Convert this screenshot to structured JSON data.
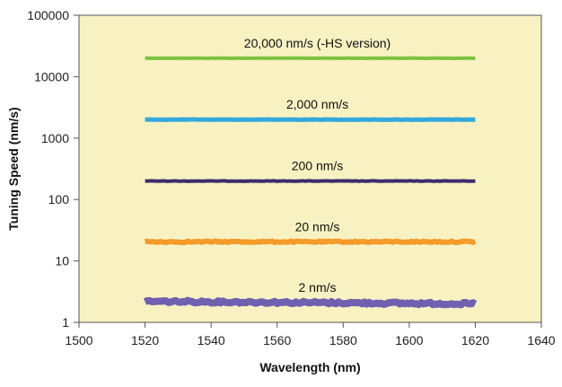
{
  "chart_data": {
    "type": "line",
    "title": "",
    "xlabel": "Wavelength (nm)",
    "ylabel": "Tuning Speed (nm/s)",
    "xlim": [
      1500,
      1640
    ],
    "ylim": [
      1,
      100000
    ],
    "yscale": "log",
    "grid": false,
    "background": "#f8f2c2",
    "x_ticks": [
      1500,
      1520,
      1540,
      1560,
      1580,
      1600,
      1620,
      1640
    ],
    "x_tick_labels": [
      "1500",
      "1520",
      "1540",
      "1560",
      "1580",
      "1600",
      "1620",
      "1640"
    ],
    "y_ticks": [
      1,
      10,
      100,
      1000,
      10000,
      100000
    ],
    "y_tick_labels": [
      "1",
      "10",
      "100",
      "1000",
      "10000",
      "100000"
    ],
    "series": [
      {
        "name": "20,000 nm/s (-HS version)",
        "color": "#7dc242",
        "x": [
          1520,
          1620
        ],
        "y": [
          20000,
          20000
        ]
      },
      {
        "name": "2,000 nm/s",
        "color": "#33a8dd",
        "x": [
          1520,
          1620
        ],
        "y": [
          2000,
          2000
        ]
      },
      {
        "name": "200 nm/s",
        "color": "#3b2d6b",
        "x": [
          1520,
          1620
        ],
        "y": [
          200,
          200
        ]
      },
      {
        "name": "20 nm/s",
        "color": "#f39b2b",
        "x": [
          1520,
          1620
        ],
        "y": [
          20.5,
          20.5
        ]
      },
      {
        "name": "2 nm/s",
        "color": "#7060b0",
        "x": [
          1520,
          1620
        ],
        "y": [
          2.2,
          2.0
        ]
      }
    ]
  }
}
